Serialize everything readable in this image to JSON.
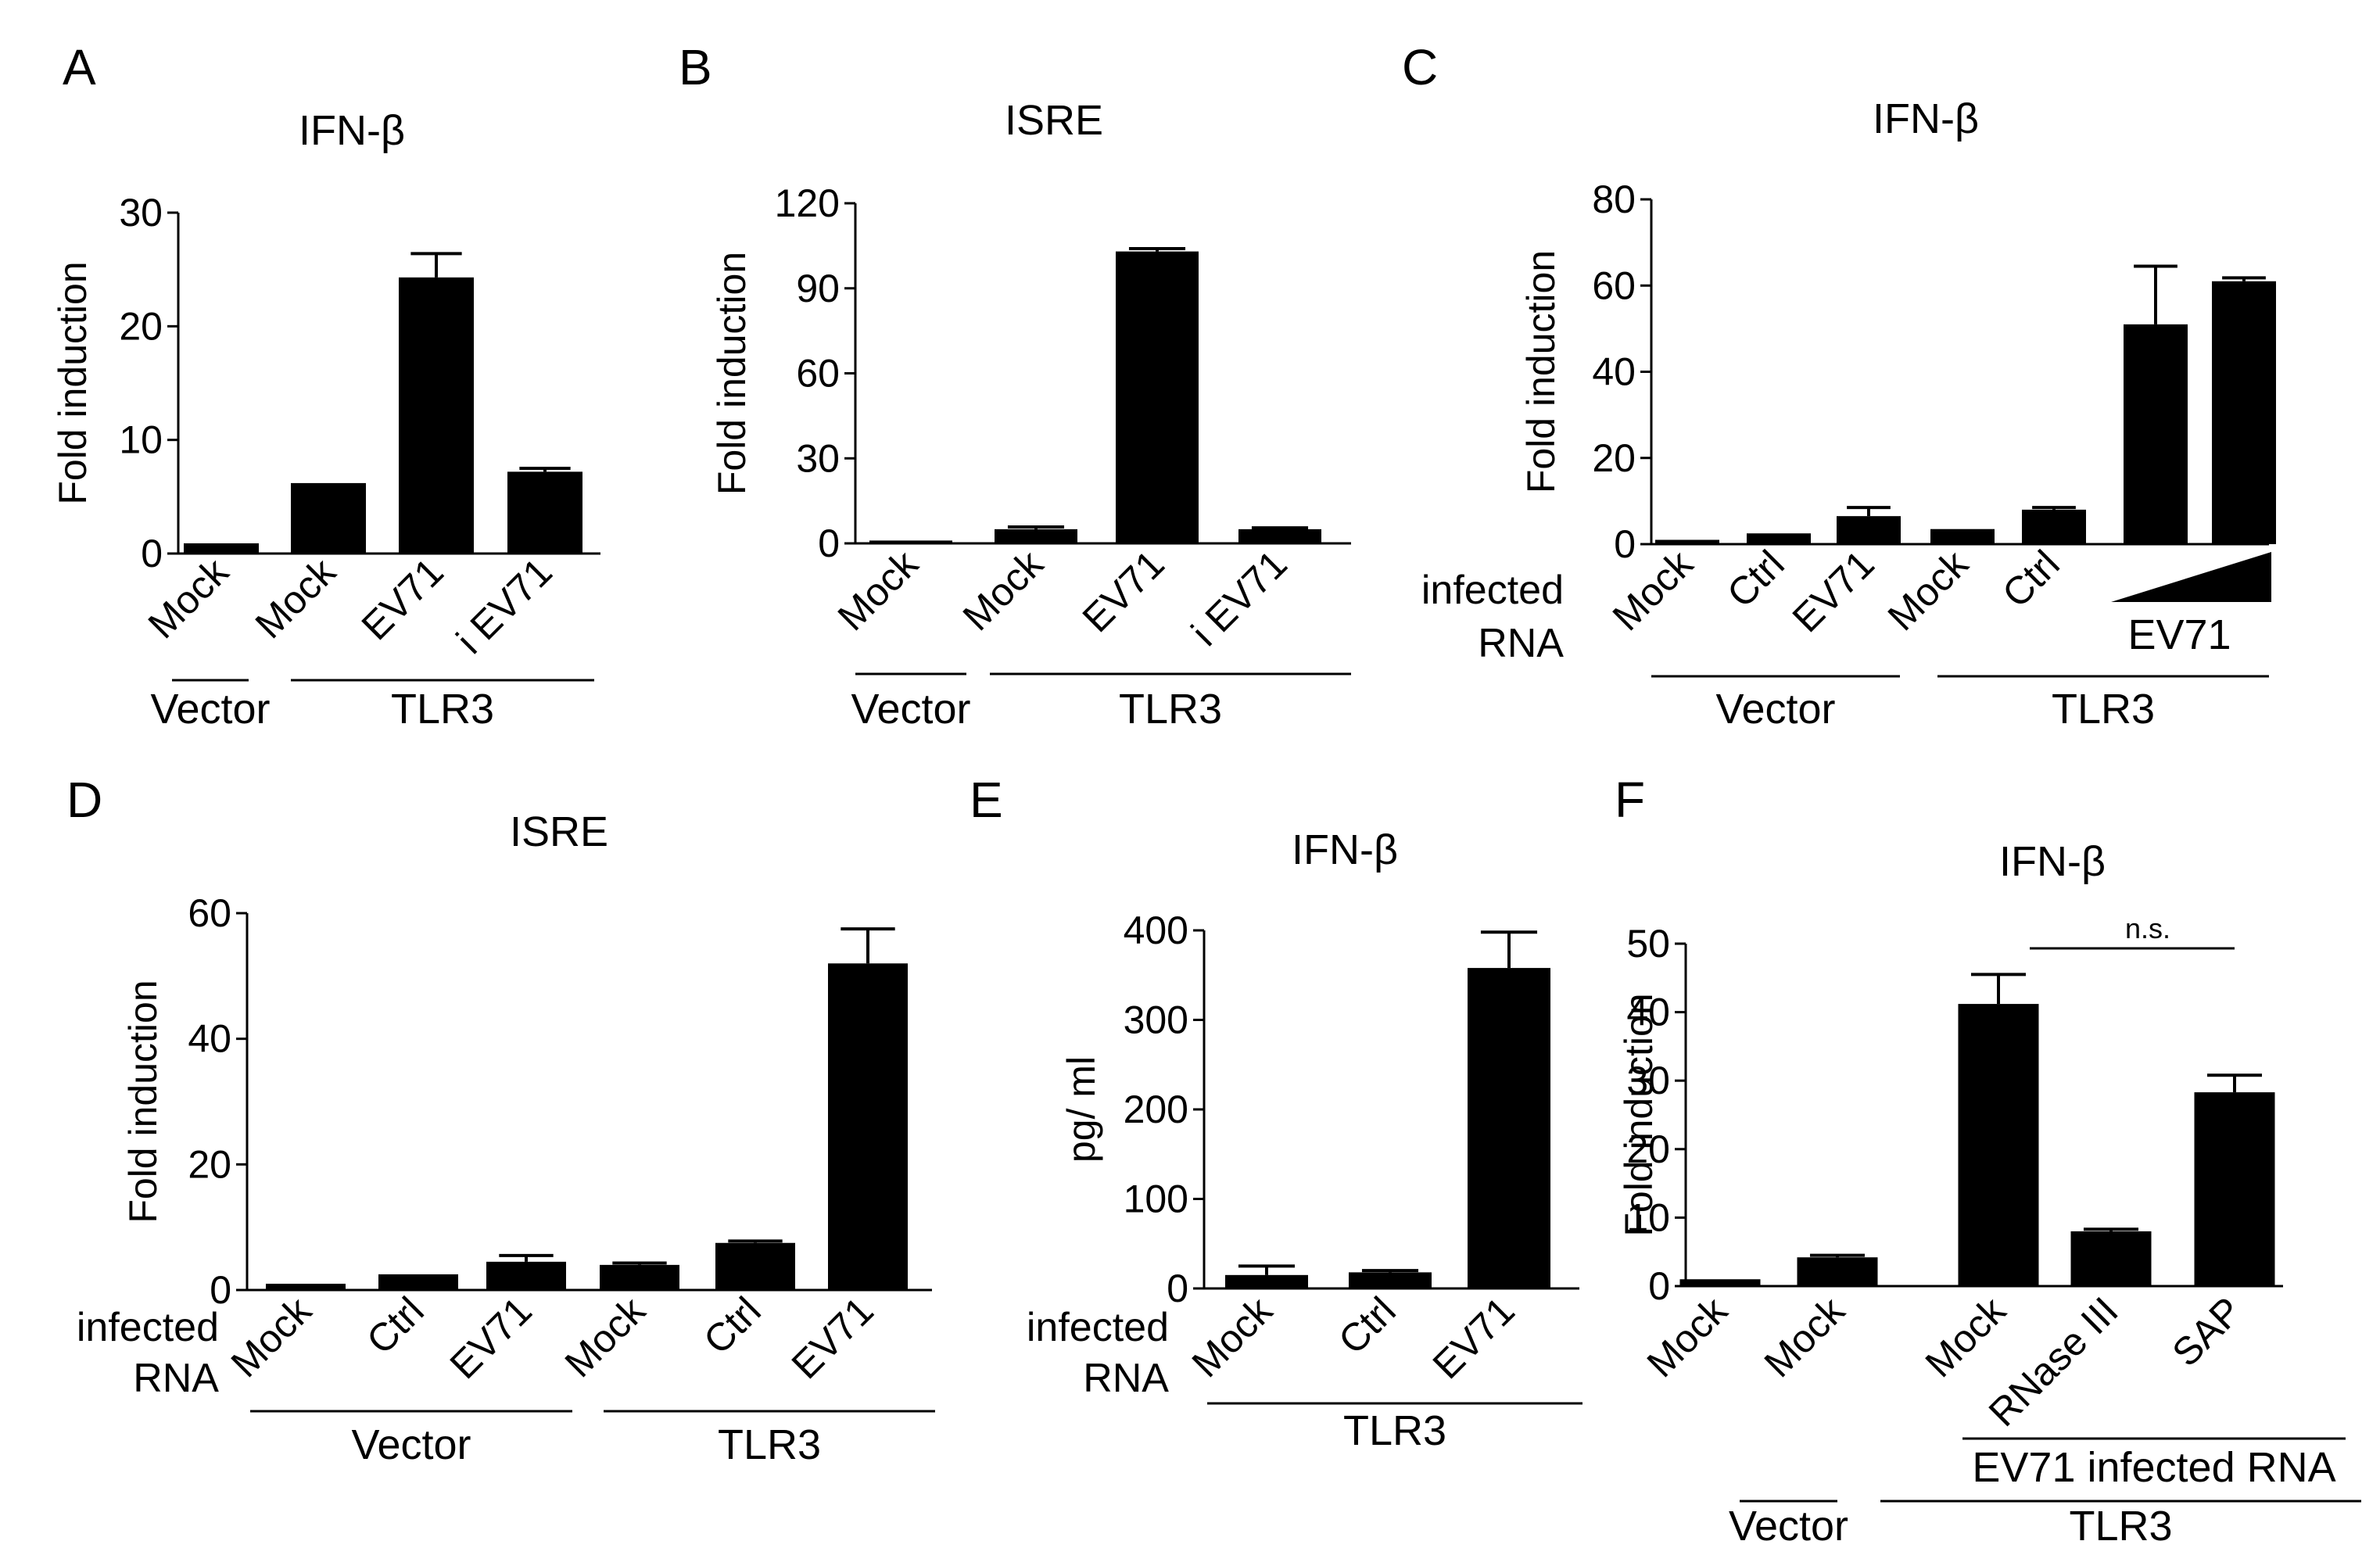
{
  "chart_data": [
    {
      "type": "bar",
      "panel": "A",
      "title": "IFN-β",
      "ylabel": "Fold induction",
      "ylim": [
        0,
        30
      ],
      "yticks": [
        0,
        10,
        20,
        30
      ],
      "categories": [
        "Mock",
        "Mock",
        "EV71",
        "i EV71"
      ],
      "values": [
        0.9,
        6.2,
        24.3,
        7.2
      ],
      "errors": [
        0,
        0,
        2.1,
        0.3
      ],
      "groups": [
        {
          "label": "Vector",
          "from": 0,
          "to": 0
        },
        {
          "label": "TLR3",
          "from": 1,
          "to": 3
        }
      ]
    },
    {
      "type": "bar",
      "panel": "B",
      "title": "ISRE",
      "ylabel": "Fold induction",
      "ylim": [
        0,
        120
      ],
      "yticks": [
        0,
        30,
        60,
        90,
        120
      ],
      "categories": [
        "Mock",
        "Mock",
        "EV71",
        "i EV71"
      ],
      "values": [
        1,
        5,
        103,
        5
      ],
      "errors": [
        0,
        0.8,
        1,
        0.5
      ],
      "groups": [
        {
          "label": "Vector",
          "from": 0,
          "to": 0
        },
        {
          "label": "TLR3",
          "from": 1,
          "to": 3
        }
      ]
    },
    {
      "type": "bar",
      "panel": "C",
      "title": "IFN-β",
      "ylabel": "Fold induction",
      "ylim": [
        0,
        80
      ],
      "yticks": [
        0,
        20,
        40,
        60,
        80
      ],
      "side_label": [
        "infected",
        "RNA"
      ],
      "categories": [
        "Mock",
        "Ctrl",
        "EV71",
        "Mock",
        "Ctrl",
        "",
        ""
      ],
      "values": [
        1,
        2.5,
        6.5,
        3.5,
        8,
        51,
        61
      ],
      "errors": [
        0,
        0,
        2,
        0,
        0.5,
        13.5,
        0.8
      ],
      "wedge_label": "EV71",
      "groups": [
        {
          "label": "Vector",
          "from": 0,
          "to": 2
        },
        {
          "label": "TLR3",
          "from": 3,
          "to": 6
        }
      ]
    },
    {
      "type": "bar",
      "panel": "D",
      "title": "ISRE",
      "ylabel": "Fold induction",
      "ylim": [
        0,
        60
      ],
      "yticks": [
        0,
        20,
        40,
        60
      ],
      "side_label": [
        "infected",
        "RNA"
      ],
      "categories": [
        "Mock",
        "Ctrl",
        "EV71",
        "Mock",
        "Ctrl",
        "EV71"
      ],
      "values": [
        1,
        2.5,
        4.5,
        4,
        7.5,
        52
      ],
      "errors": [
        0,
        0,
        1,
        0.3,
        0.3,
        5.5
      ],
      "groups": [
        {
          "label": "Vector",
          "from": 0,
          "to": 2
        },
        {
          "label": "TLR3",
          "from": 3,
          "to": 5
        }
      ]
    },
    {
      "type": "bar",
      "panel": "E",
      "title": "IFN-β",
      "ylabel": "pg/ ml",
      "ylim": [
        0,
        400
      ],
      "yticks": [
        0,
        100,
        200,
        300,
        400
      ],
      "side_label": [
        "infected",
        "RNA"
      ],
      "categories": [
        "Mock",
        "Ctrl",
        "EV71"
      ],
      "values": [
        15,
        18,
        358
      ],
      "errors": [
        10,
        2,
        40
      ],
      "groups": [
        {
          "label": "TLR3",
          "from": 0,
          "to": 2
        }
      ]
    },
    {
      "type": "bar",
      "panel": "F",
      "title": "IFN-β",
      "ylabel": "Fold induction",
      "ylim": [
        0,
        50
      ],
      "yticks": [
        0,
        10,
        20,
        30,
        40,
        50
      ],
      "categories": [
        "Mock",
        "Mock",
        "Mock",
        "RNase III",
        "SAP"
      ],
      "values": [
        1,
        4.2,
        41.2,
        8,
        28.3
      ],
      "errors": [
        0,
        0.3,
        4.3,
        0.3,
        2.5
      ],
      "significance": {
        "label": "n.s.",
        "from": 2,
        "to": 4
      },
      "groups": [
        {
          "label": "EV71 infected RNA",
          "from": 2,
          "to": 4,
          "row": 1
        },
        {
          "label": "Vector",
          "from": 0,
          "to": 0,
          "row": 2
        },
        {
          "label": "TLR3",
          "from": 1,
          "to": 4,
          "row": 2
        }
      ]
    }
  ],
  "colors": {
    "bar": "#000000",
    "axis": "#000000",
    "background": "#ffffff"
  }
}
